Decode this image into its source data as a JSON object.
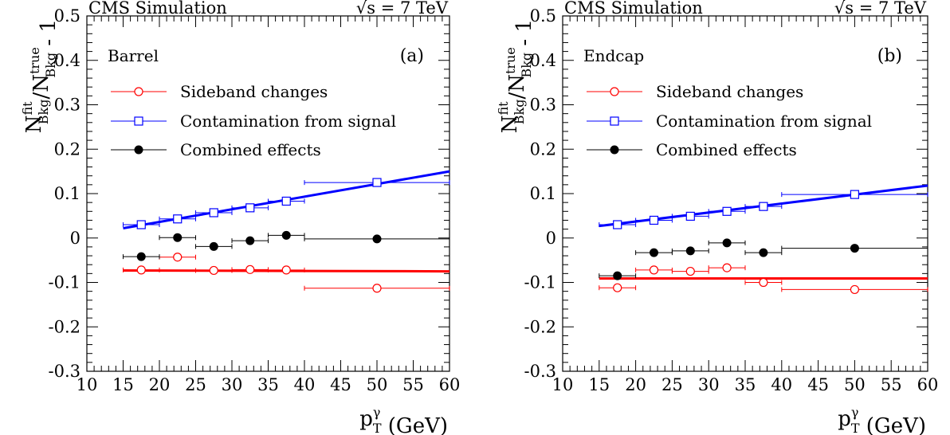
{
  "chart_data": [
    {
      "type": "scatter",
      "panel_label": "(a)",
      "region": "Barrel",
      "header_left": "CMS Simulation",
      "header_right": "√s = 7 TeV",
      "xlabel": "p_T^γ (GeV)",
      "ylabel": "N_Bkg^fit/N_Bkg^true - 1",
      "xlim": [
        10,
        60
      ],
      "ylim": [
        -0.3,
        0.5
      ],
      "x_ticks": [
        "10",
        "15",
        "20",
        "25",
        "30",
        "35",
        "40",
        "45",
        "50",
        "55",
        "60"
      ],
      "y_ticks": [
        "-0.3",
        "-0.2",
        "-0.1",
        "0",
        "0.1",
        "0.2",
        "0.3",
        "0.4",
        "0.5"
      ],
      "legend_position": "upper-left",
      "series": [
        {
          "name": "Sideband changes",
          "color": "#ff0000",
          "marker": "open-circle",
          "points": [
            {
              "x": 17.5,
              "y": -0.072,
              "xlo": 15,
              "xhi": 20
            },
            {
              "x": 22.5,
              "y": -0.043,
              "xlo": 20,
              "xhi": 25
            },
            {
              "x": 27.5,
              "y": -0.073,
              "xlo": 25,
              "xhi": 30
            },
            {
              "x": 32.5,
              "y": -0.071,
              "xlo": 30,
              "xhi": 35
            },
            {
              "x": 37.5,
              "y": -0.072,
              "xlo": 35,
              "xhi": 40
            },
            {
              "x": 50,
              "y": -0.113,
              "xlo": 40,
              "xhi": 60
            }
          ],
          "fit": {
            "x": [
              15,
              60
            ],
            "y": [
              -0.073,
              -0.075
            ]
          }
        },
        {
          "name": "Contamination from signal",
          "color": "#0000ff",
          "marker": "open-square",
          "points": [
            {
              "x": 17.5,
              "y": 0.03,
              "xlo": 15,
              "xhi": 20
            },
            {
              "x": 22.5,
              "y": 0.043,
              "xlo": 20,
              "xhi": 25
            },
            {
              "x": 27.5,
              "y": 0.057,
              "xlo": 25,
              "xhi": 30
            },
            {
              "x": 32.5,
              "y": 0.068,
              "xlo": 30,
              "xhi": 35
            },
            {
              "x": 37.5,
              "y": 0.083,
              "xlo": 35,
              "xhi": 40
            },
            {
              "x": 50,
              "y": 0.125,
              "xlo": 40,
              "xhi": 60
            }
          ],
          "fit": {
            "x": [
              15,
              60
            ],
            "y": [
              0.022,
              0.15
            ]
          }
        },
        {
          "name": "Combined effects",
          "color": "#000000",
          "marker": "filled-circle",
          "points": [
            {
              "x": 17.5,
              "y": -0.042,
              "xlo": 15,
              "xhi": 20
            },
            {
              "x": 22.5,
              "y": 0.001,
              "xlo": 20,
              "xhi": 25
            },
            {
              "x": 27.5,
              "y": -0.019,
              "xlo": 25,
              "xhi": 30
            },
            {
              "x": 32.5,
              "y": -0.006,
              "xlo": 30,
              "xhi": 35
            },
            {
              "x": 37.5,
              "y": 0.006,
              "xlo": 35,
              "xhi": 40
            },
            {
              "x": 50,
              "y": -0.002,
              "xlo": 40,
              "xhi": 60
            }
          ]
        }
      ]
    },
    {
      "type": "scatter",
      "panel_label": "(b)",
      "region": "Endcap",
      "header_left": "CMS Simulation",
      "header_right": "√s = 7 TeV",
      "xlabel": "p_T^γ (GeV)",
      "ylabel": "N_Bkg^fit/N_Bkg^true - 1",
      "xlim": [
        10,
        60
      ],
      "ylim": [
        -0.3,
        0.5
      ],
      "x_ticks": [
        "10",
        "15",
        "20",
        "25",
        "30",
        "35",
        "40",
        "45",
        "50",
        "55",
        "60"
      ],
      "y_ticks": [
        "-0.3",
        "-0.2",
        "-0.1",
        "0",
        "0.1",
        "0.2",
        "0.3",
        "0.4",
        "0.5"
      ],
      "legend_position": "upper-left",
      "series": [
        {
          "name": "Sideband changes",
          "color": "#ff0000",
          "marker": "open-circle",
          "points": [
            {
              "x": 17.5,
              "y": -0.112,
              "xlo": 15,
              "xhi": 20
            },
            {
              "x": 22.5,
              "y": -0.072,
              "xlo": 20,
              "xhi": 25
            },
            {
              "x": 27.5,
              "y": -0.075,
              "xlo": 25,
              "xhi": 30
            },
            {
              "x": 32.5,
              "y": -0.067,
              "xlo": 30,
              "xhi": 35
            },
            {
              "x": 37.5,
              "y": -0.1,
              "xlo": 35,
              "xhi": 40
            },
            {
              "x": 50,
              "y": -0.116,
              "xlo": 40,
              "xhi": 60
            }
          ],
          "fit": {
            "x": [
              15,
              60
            ],
            "y": [
              -0.091,
              -0.091
            ]
          }
        },
        {
          "name": "Contamination from signal",
          "color": "#0000ff",
          "marker": "open-square",
          "points": [
            {
              "x": 17.5,
              "y": 0.03,
              "xlo": 15,
              "xhi": 20
            },
            {
              "x": 22.5,
              "y": 0.04,
              "xlo": 20,
              "xhi": 25
            },
            {
              "x": 27.5,
              "y": 0.049,
              "xlo": 25,
              "xhi": 30
            },
            {
              "x": 32.5,
              "y": 0.06,
              "xlo": 30,
              "xhi": 35
            },
            {
              "x": 37.5,
              "y": 0.071,
              "xlo": 35,
              "xhi": 40
            },
            {
              "x": 50,
              "y": 0.098,
              "xlo": 40,
              "xhi": 60
            }
          ],
          "fit": {
            "x": [
              15,
              60
            ],
            "y": [
              0.027,
              0.118
            ]
          }
        },
        {
          "name": "Combined effects",
          "color": "#000000",
          "marker": "filled-circle",
          "points": [
            {
              "x": 17.5,
              "y": -0.085,
              "xlo": 15,
              "xhi": 20
            },
            {
              "x": 22.5,
              "y": -0.033,
              "xlo": 20,
              "xhi": 25
            },
            {
              "x": 27.5,
              "y": -0.029,
              "xlo": 25,
              "xhi": 30
            },
            {
              "x": 32.5,
              "y": -0.011,
              "xlo": 30,
              "xhi": 35
            },
            {
              "x": 37.5,
              "y": -0.033,
              "xlo": 35,
              "xhi": 40
            },
            {
              "x": 50,
              "y": -0.023,
              "xlo": 40,
              "xhi": 60
            }
          ]
        }
      ]
    }
  ]
}
